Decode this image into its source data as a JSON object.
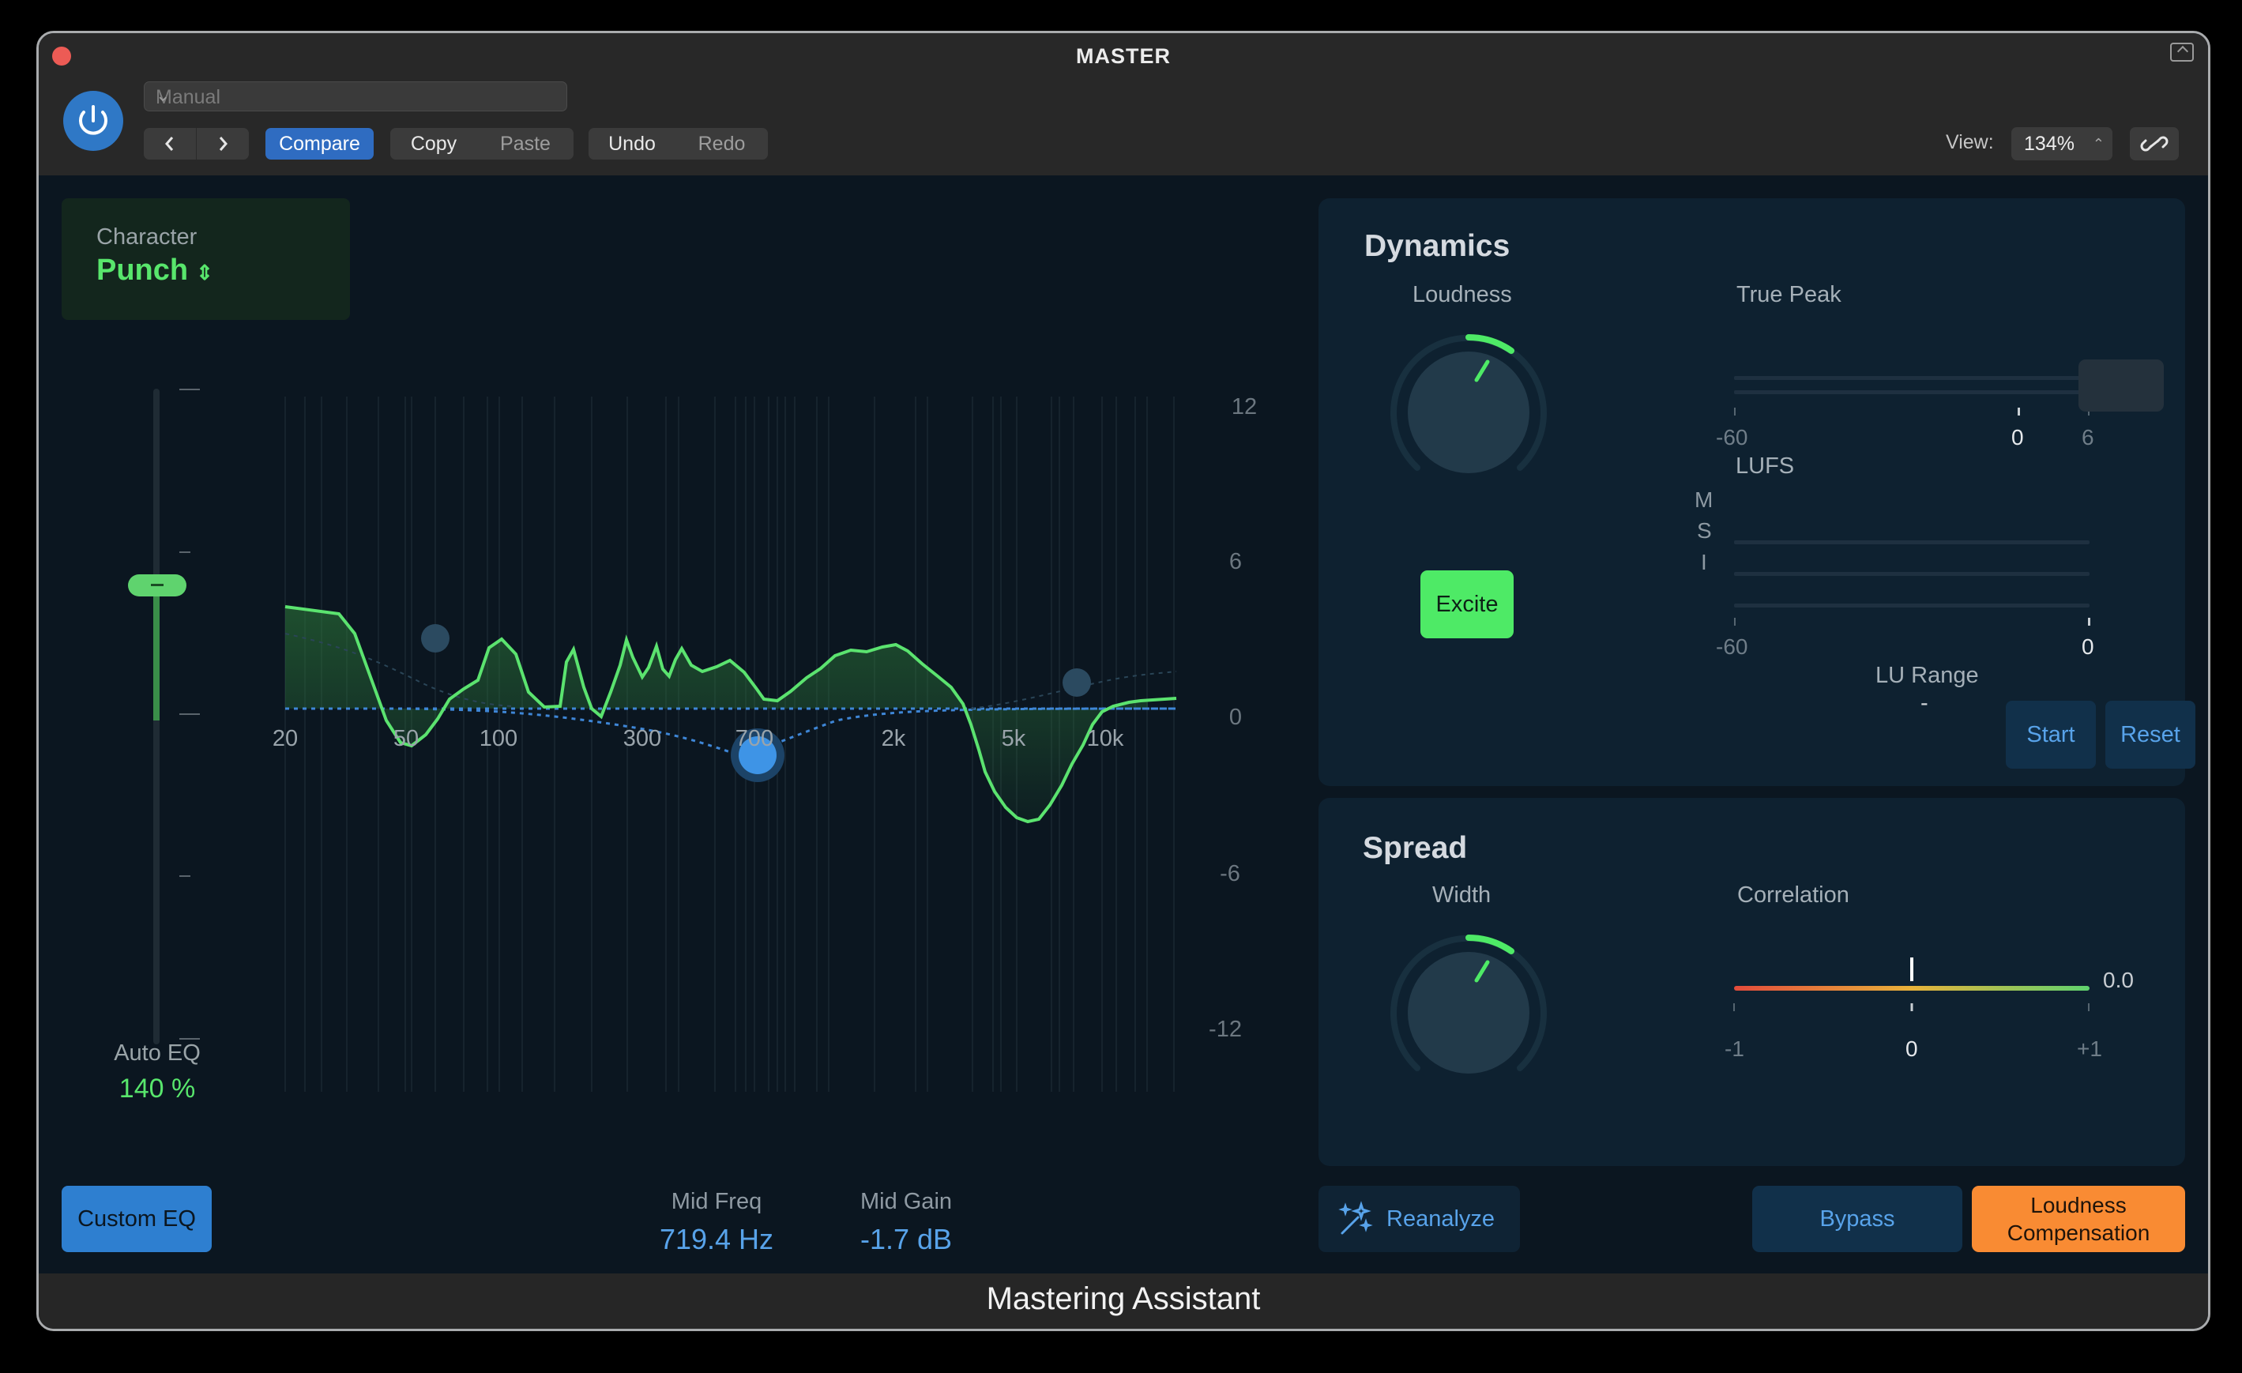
{
  "window": {
    "title": "MASTER",
    "footer": "Mastering Assistant"
  },
  "toolbar": {
    "preset": "Manual",
    "compare": "Compare",
    "copy": "Copy",
    "paste": "Paste",
    "undo": "Undo",
    "redo": "Redo",
    "view_label": "View:",
    "view_value": "134%"
  },
  "character": {
    "label": "Character",
    "value": "Punch"
  },
  "auto_eq": {
    "label": "Auto EQ",
    "value": "140 %",
    "slider_fraction": 0.7
  },
  "eq": {
    "freq_labels": [
      "20",
      "50",
      "100",
      "300",
      "700",
      "2k",
      "5k",
      "10k"
    ],
    "db_labels": [
      "12",
      "6",
      "0",
      "-6",
      "-12"
    ],
    "selected_band": "mid"
  },
  "custom_eq_button": "Custom EQ",
  "params": {
    "mid_freq": {
      "label": "Mid Freq",
      "value": "719.4 Hz"
    },
    "mid_gain": {
      "label": "Mid Gain",
      "value": "-1.7 dB"
    }
  },
  "dynamics": {
    "title": "Dynamics",
    "loudness_label": "Loudness",
    "excite": "Excite",
    "true_peak": {
      "label": "True Peak",
      "min": "-60",
      "zero": "0",
      "max": "6"
    },
    "lufs": {
      "label": "LUFS",
      "rows": [
        "M",
        "S",
        "I"
      ],
      "min": "-60",
      "max": "0"
    },
    "lu_range": {
      "label": "LU Range",
      "value": "-"
    },
    "start": "Start",
    "reset": "Reset"
  },
  "spread": {
    "title": "Spread",
    "width_label": "Width",
    "correlation": {
      "label": "Correlation",
      "min": "-1",
      "mid": "0",
      "max": "+1",
      "value": "0.0"
    }
  },
  "buttons": {
    "reanalyze": "Reanalyze",
    "bypass": "Bypass",
    "loudness_comp_line1": "Loudness",
    "loudness_comp_line2": "Compensation"
  },
  "icons": {
    "power": "power-icon",
    "close": "close-icon",
    "link": "link-icon",
    "reanalyze": "magic-wand-icon"
  },
  "colors": {
    "accent_green": "#58e66c",
    "accent_blue": "#2e7fd0",
    "orange": "#f98b33",
    "panel_bg": "#0e2130"
  }
}
